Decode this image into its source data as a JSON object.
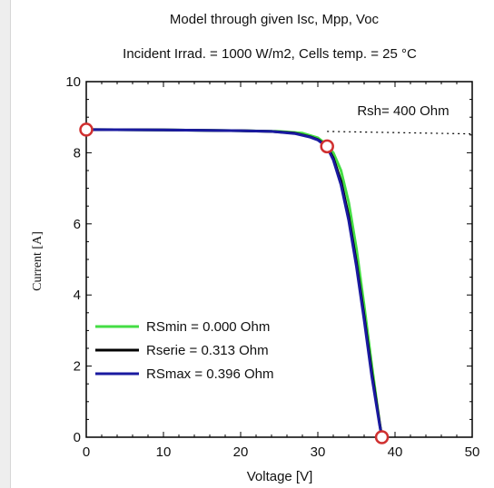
{
  "chart_data": {
    "type": "line",
    "title": "Model through given Isc, Mpp, Voc",
    "subtitle": "Incident Irrad. = 1000 W/m2,  Cells temp. = 25 °C",
    "xlabel": "Voltage [V]",
    "ylabel": "Current [A]",
    "xlim": [
      0,
      50
    ],
    "ylim": [
      0,
      10
    ],
    "xticks": [
      "0",
      "10",
      "20",
      "30",
      "40",
      "50"
    ],
    "yticks": [
      "0",
      "2",
      "4",
      "6",
      "8",
      "10"
    ],
    "grid": false,
    "legend_position": "bottom-left",
    "series": [
      {
        "name": "RSmin = 0.000 Ohm",
        "color": "#44dd44",
        "x": [
          0,
          10,
          20,
          25,
          28,
          30,
          31.2,
          32,
          33,
          34,
          35,
          36,
          37,
          38,
          38.3
        ],
        "y": [
          8.65,
          8.64,
          8.62,
          8.6,
          8.55,
          8.42,
          8.22,
          8.0,
          7.5,
          6.6,
          5.3,
          3.7,
          2.0,
          0.4,
          0
        ]
      },
      {
        "name": "Rserie = 0.313 Ohm",
        "color": "#000000",
        "x": [
          0,
          10,
          20,
          24,
          27,
          29,
          30,
          31.2,
          32,
          33,
          34,
          35,
          36,
          37,
          38,
          38.3
        ],
        "y": [
          8.65,
          8.64,
          8.62,
          8.6,
          8.55,
          8.45,
          8.37,
          8.18,
          7.85,
          7.2,
          6.2,
          4.9,
          3.4,
          1.8,
          0.4,
          0
        ]
      },
      {
        "name": "RSmax = 0.396 Ohm",
        "color": "#1a1aa0",
        "x": [
          0,
          10,
          20,
          24,
          27,
          29,
          30,
          31.2,
          32,
          33,
          34,
          35,
          36,
          37,
          38,
          38.3
        ],
        "y": [
          8.65,
          8.64,
          8.62,
          8.6,
          8.54,
          8.44,
          8.36,
          8.16,
          7.8,
          7.1,
          6.1,
          4.8,
          3.3,
          1.7,
          0.35,
          0
        ]
      }
    ],
    "markers": [
      {
        "name": "Isc",
        "x": 0,
        "y": 8.65
      },
      {
        "name": "Mpp",
        "x": 31.2,
        "y": 8.18
      },
      {
        "name": "Voc",
        "x": 38.3,
        "y": 0
      }
    ],
    "marker_color": "#d03030",
    "reference_line": {
      "label": "Rsh= 400 Ohm",
      "x": [
        31.2,
        50
      ],
      "y": [
        8.6,
        8.53
      ],
      "style": "dotted"
    }
  }
}
